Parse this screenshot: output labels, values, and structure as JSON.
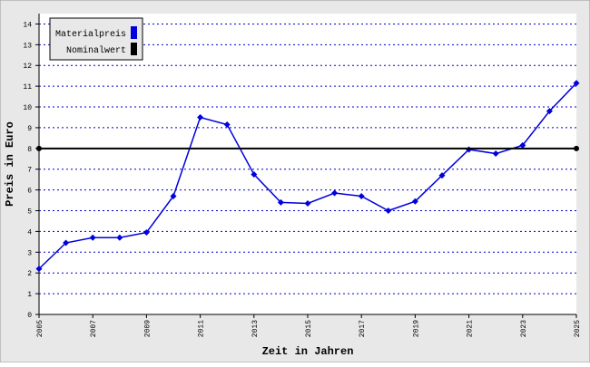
{
  "chart_data": {
    "type": "line",
    "xlabel": "Zeit in Jahren",
    "ylabel": "Preis in Euro",
    "x": [
      2005,
      2006,
      2007,
      2008,
      2009,
      2010,
      2011,
      2012,
      2013,
      2014,
      2015,
      2016,
      2017,
      2018,
      2019,
      2020,
      2021,
      2022,
      2023,
      2024,
      2025
    ],
    "series": [
      {
        "name": "Materialpreis",
        "color": "#0000dd",
        "values": [
          2.2,
          3.45,
          3.7,
          3.7,
          3.95,
          5.7,
          9.5,
          9.15,
          6.75,
          5.4,
          5.35,
          5.85,
          5.7,
          5.0,
          5.45,
          6.7,
          7.95,
          7.75,
          8.15,
          9.8,
          11.15
        ]
      },
      {
        "name": "Nominalwert",
        "color": "#000000",
        "values": [
          8,
          null,
          null,
          null,
          null,
          null,
          null,
          null,
          null,
          null,
          null,
          null,
          null,
          null,
          null,
          null,
          null,
          null,
          null,
          null,
          8
        ]
      }
    ],
    "xlim": [
      2005,
      2025
    ],
    "xticks": [
      2005,
      2007,
      2009,
      2011,
      2013,
      2015,
      2017,
      2019,
      2021,
      2023,
      2025
    ],
    "ylim": [
      0,
      14.5
    ],
    "yticks": [
      0,
      1,
      2,
      3,
      4,
      5,
      6,
      7,
      8,
      9,
      10,
      11,
      12,
      13,
      14
    ],
    "grid": true,
    "legend": "top-left"
  }
}
